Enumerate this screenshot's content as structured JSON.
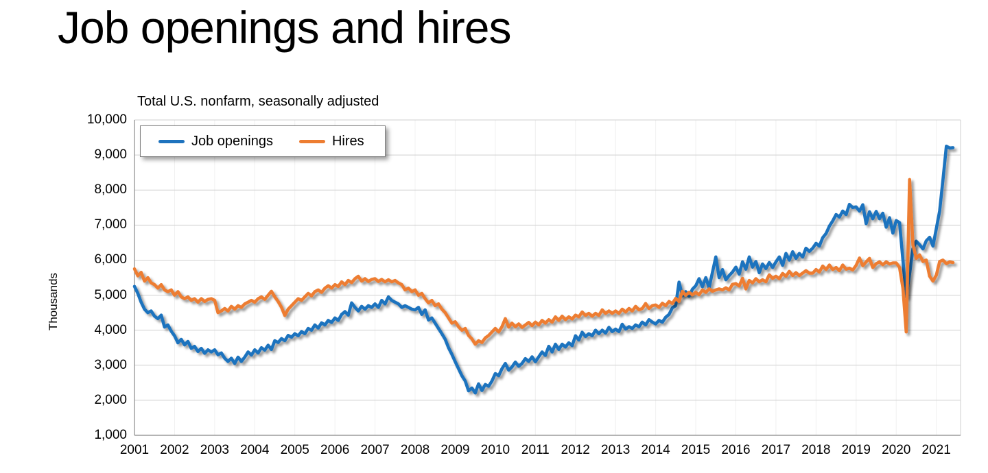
{
  "page": {
    "title": "Job openings and hires",
    "background": "#FFFFFF"
  },
  "chart_data": {
    "type": "line",
    "title": "Total U.S. nonfarm, seasonally adjusted",
    "xlabel": "",
    "ylabel": "Thousands",
    "units": "thousands",
    "x_frequency": "monthly",
    "x_start": "2001-01",
    "x_end": "2021-06",
    "ylim": [
      1000,
      10000
    ],
    "grid": "horizontal-major-with-faint-yearly-verticals",
    "legend_position": "top-left-inside",
    "colors": {
      "job_openings": "#1E73BE",
      "hires": "#ED7D31",
      "gridline": "#CFCFCF",
      "faint_gridline": "#F0F0F0",
      "axis": "#9B9B9B"
    },
    "y_ticks": [
      1000,
      2000,
      3000,
      4000,
      5000,
      6000,
      7000,
      8000,
      9000,
      10000
    ],
    "y_tick_labels": [
      "1,000",
      "2,000",
      "3,000",
      "4,000",
      "5,000",
      "6,000",
      "7,000",
      "8,000",
      "9,000",
      "10,000"
    ],
    "x_tick_labels": [
      "2001",
      "2002",
      "2003",
      "2004",
      "2005",
      "2006",
      "2007",
      "2008",
      "2009",
      "2010",
      "2011",
      "2012",
      "2013",
      "2014",
      "2015",
      "2016",
      "2017",
      "2018",
      "2019",
      "2020",
      "2021"
    ],
    "series": [
      {
        "name": "Job openings",
        "color": "#1E73BE",
        "values": [
          5250,
          5050,
          4800,
          4600,
          4500,
          4550,
          4400,
          4330,
          4430,
          4090,
          4150,
          3970,
          3840,
          3640,
          3740,
          3580,
          3680,
          3480,
          3540,
          3390,
          3480,
          3340,
          3440,
          3380,
          3440,
          3300,
          3350,
          3200,
          3110,
          3200,
          3050,
          3230,
          3110,
          3230,
          3380,
          3290,
          3440,
          3350,
          3500,
          3430,
          3570,
          3450,
          3700,
          3650,
          3760,
          3700,
          3850,
          3800,
          3900,
          3840,
          3960,
          3900,
          4050,
          4000,
          4150,
          4060,
          4210,
          4150,
          4280,
          4220,
          4350,
          4280,
          4450,
          4530,
          4430,
          4780,
          4650,
          4550,
          4680,
          4600,
          4700,
          4650,
          4750,
          4650,
          4850,
          4750,
          4950,
          4850,
          4800,
          4750,
          4650,
          4700,
          4650,
          4600,
          4580,
          4650,
          4450,
          4580,
          4290,
          4350,
          4200,
          4050,
          3900,
          3740,
          3500,
          3310,
          3100,
          2900,
          2700,
          2550,
          2270,
          2350,
          2210,
          2470,
          2280,
          2450,
          2400,
          2550,
          2760,
          2700,
          2900,
          3050,
          2860,
          2950,
          3090,
          2970,
          3050,
          3190,
          3110,
          3240,
          3100,
          3240,
          3380,
          3280,
          3540,
          3380,
          3600,
          3450,
          3600,
          3520,
          3640,
          3560,
          3840,
          3720,
          3940,
          3820,
          3900,
          3840,
          4000,
          3900,
          4000,
          3920,
          4080,
          3960,
          4030,
          3960,
          4170,
          4030,
          4100,
          4050,
          4150,
          4100,
          4230,
          4150,
          4300,
          4230,
          4180,
          4280,
          4230,
          4370,
          4450,
          4640,
          4700,
          5370,
          4980,
          5100,
          4970,
          5170,
          5270,
          5470,
          5240,
          5500,
          5210,
          5650,
          6090,
          5500,
          5730,
          5440,
          5560,
          5660,
          5800,
          5600,
          5950,
          5740,
          6090,
          5800,
          5960,
          5640,
          5890,
          5760,
          5930,
          5790,
          5950,
          6090,
          5850,
          6190,
          6000,
          6240,
          6050,
          6190,
          6090,
          6340,
          6250,
          6340,
          6480,
          6400,
          6640,
          6760,
          6970,
          7120,
          7300,
          7230,
          7400,
          7300,
          7590,
          7500,
          7520,
          7400,
          7580,
          7040,
          7380,
          7180,
          7390,
          7180,
          7340,
          6940,
          7210,
          6770,
          7130,
          7070,
          6000,
          4950,
          5600,
          6320,
          6540,
          6440,
          6320,
          6550,
          6650,
          6400,
          6900,
          7400,
          8300,
          9250,
          9200,
          9210
        ]
      },
      {
        "name": "Hires",
        "color": "#ED7D31",
        "values": [
          5750,
          5550,
          5650,
          5400,
          5500,
          5350,
          5300,
          5200,
          5300,
          5150,
          5100,
          5150,
          5000,
          5100,
          4950,
          4900,
          4950,
          4850,
          4900,
          4800,
          4900,
          4820,
          4880,
          4900,
          4850,
          4500,
          4550,
          4620,
          4550,
          4680,
          4600,
          4700,
          4650,
          4750,
          4800,
          4850,
          4800,
          4900,
          4950,
          4880,
          5000,
          5110,
          4950,
          4820,
          4650,
          4420,
          4600,
          4700,
          4800,
          4900,
          4850,
          4950,
          5050,
          4980,
          5100,
          5150,
          5080,
          5200,
          5270,
          5200,
          5300,
          5250,
          5380,
          5300,
          5420,
          5360,
          5470,
          5540,
          5400,
          5470,
          5390,
          5450,
          5470,
          5390,
          5450,
          5380,
          5440,
          5380,
          5420,
          5350,
          5300,
          5150,
          5200,
          5100,
          5150,
          5000,
          5050,
          4900,
          4780,
          4850,
          4700,
          4750,
          4600,
          4500,
          4350,
          4200,
          4240,
          4100,
          4000,
          4050,
          3850,
          3750,
          3600,
          3700,
          3650,
          3780,
          3850,
          3950,
          4050,
          3950,
          4100,
          4330,
          4090,
          4200,
          4100,
          4180,
          4080,
          4150,
          4220,
          4130,
          4230,
          4150,
          4280,
          4200,
          4300,
          4230,
          4380,
          4280,
          4400,
          4300,
          4380,
          4320,
          4430,
          4380,
          4520,
          4420,
          4480,
          4400,
          4480,
          4420,
          4580,
          4480,
          4550,
          4480,
          4550,
          4480,
          4600,
          4520,
          4620,
          4550,
          4680,
          4580,
          4620,
          4760,
          4620,
          4700,
          4720,
          4650,
          4770,
          4700,
          4820,
          4760,
          4910,
          4820,
          5110,
          5000,
          5080,
          5010,
          5080,
          5010,
          5150,
          5080,
          5180,
          5110,
          5150,
          5180,
          5150,
          5210,
          5150,
          5310,
          5330,
          5260,
          5480,
          5180,
          5420,
          5350,
          5470,
          5380,
          5440,
          5380,
          5580,
          5480,
          5540,
          5470,
          5620,
          5540,
          5680,
          5560,
          5640,
          5560,
          5630,
          5700,
          5630,
          5630,
          5730,
          5660,
          5830,
          5730,
          5860,
          5730,
          5790,
          5700,
          5860,
          5740,
          5770,
          5720,
          5850,
          6060,
          5840,
          5950,
          6050,
          5790,
          5900,
          5950,
          5870,
          5950,
          5890,
          5920,
          5920,
          5790,
          5200,
          3950,
          8300,
          6440,
          6050,
          6150,
          5960,
          6000,
          5540,
          5400,
          5570,
          5960,
          6000,
          5900,
          5950,
          5930
        ]
      }
    ]
  }
}
